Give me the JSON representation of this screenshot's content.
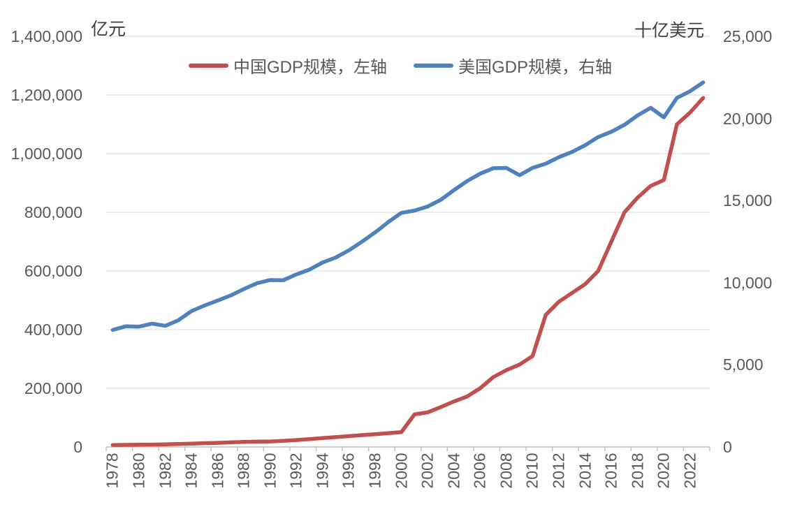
{
  "page": {
    "background": "#FFFFFF"
  },
  "chart_data": {
    "type": "line",
    "title": "",
    "legend_position": "top",
    "grid": true,
    "left_axis": {
      "title": "亿元",
      "min": 0,
      "max": 1400000,
      "step": 200000,
      "tick_labels": [
        "0",
        "200,000",
        "400,000",
        "600,000",
        "800,000",
        "1,000,000",
        "1,200,000",
        "1,400,000"
      ]
    },
    "right_axis": {
      "title": "十亿美元",
      "min": 0,
      "max": 25000,
      "step": 5000,
      "tick_labels": [
        "0",
        "5,000",
        "10,000",
        "15,000",
        "20,000",
        "25,000"
      ]
    },
    "x_axis": {
      "years": [
        1978,
        1979,
        1980,
        1981,
        1982,
        1983,
        1984,
        1985,
        1986,
        1987,
        1988,
        1989,
        1990,
        1991,
        1992,
        1993,
        1994,
        1995,
        1996,
        1997,
        1998,
        1999,
        2000,
        2001,
        2002,
        2003,
        2004,
        2005,
        2006,
        2007,
        2008,
        2009,
        2010,
        2011,
        2012,
        2013,
        2014,
        2015,
        2016,
        2017,
        2018,
        2019,
        2020,
        2021,
        2022,
        2023
      ],
      "tick_label_years": [
        "1978",
        "1980",
        "1982",
        "1984",
        "1986",
        "1988",
        "1990",
        "1992",
        "1994",
        "1996",
        "1998",
        "2000",
        "2002",
        "2004",
        "2006",
        "2008",
        "2010",
        "2012",
        "2014",
        "2016",
        "2018",
        "2020",
        "2022"
      ]
    },
    "series": [
      {
        "name": "中国GDP规模，左轴",
        "axis": "left",
        "color": "#C0504D",
        "values": [
          6700,
          7200,
          7800,
          8200,
          8900,
          9900,
          11400,
          12900,
          14000,
          15700,
          17400,
          18200,
          18900,
          20600,
          23500,
          26800,
          30300,
          33600,
          37000,
          40400,
          43500,
          46900,
          50800,
          111000,
          118000,
          136000,
          155000,
          172000,
          200000,
          238000,
          262000,
          281000,
          310000,
          450000,
          495000,
          525000,
          555000,
          600000,
          700000,
          800000,
          850000,
          890000,
          910000,
          1100000,
          1140000,
          1190000
        ]
      },
      {
        "name": "美国GDP规模，右轴",
        "axis": "right",
        "color": "#4F81BD",
        "values": [
          7120,
          7348,
          7326,
          7509,
          7374,
          7713,
          8268,
          8615,
          8916,
          9228,
          9616,
          9972,
          10161,
          10151,
          10506,
          10800,
          11232,
          11535,
          11973,
          12500,
          13063,
          13690,
          14251,
          14393,
          14638,
          15048,
          15635,
          16182,
          16635,
          16968,
          16985,
          16543,
          16990,
          17245,
          17642,
          17960,
          18373,
          18869,
          19190,
          19612,
          20181,
          20645,
          20067,
          21251,
          21655,
          22196
        ]
      }
    ],
    "styles": {
      "gridline_color": "#D9D9D9",
      "axis_color": "#BFBFBF",
      "text_color": "#595959",
      "china_line_color": "#C0504D",
      "us_line_color": "#4F81BD"
    }
  }
}
